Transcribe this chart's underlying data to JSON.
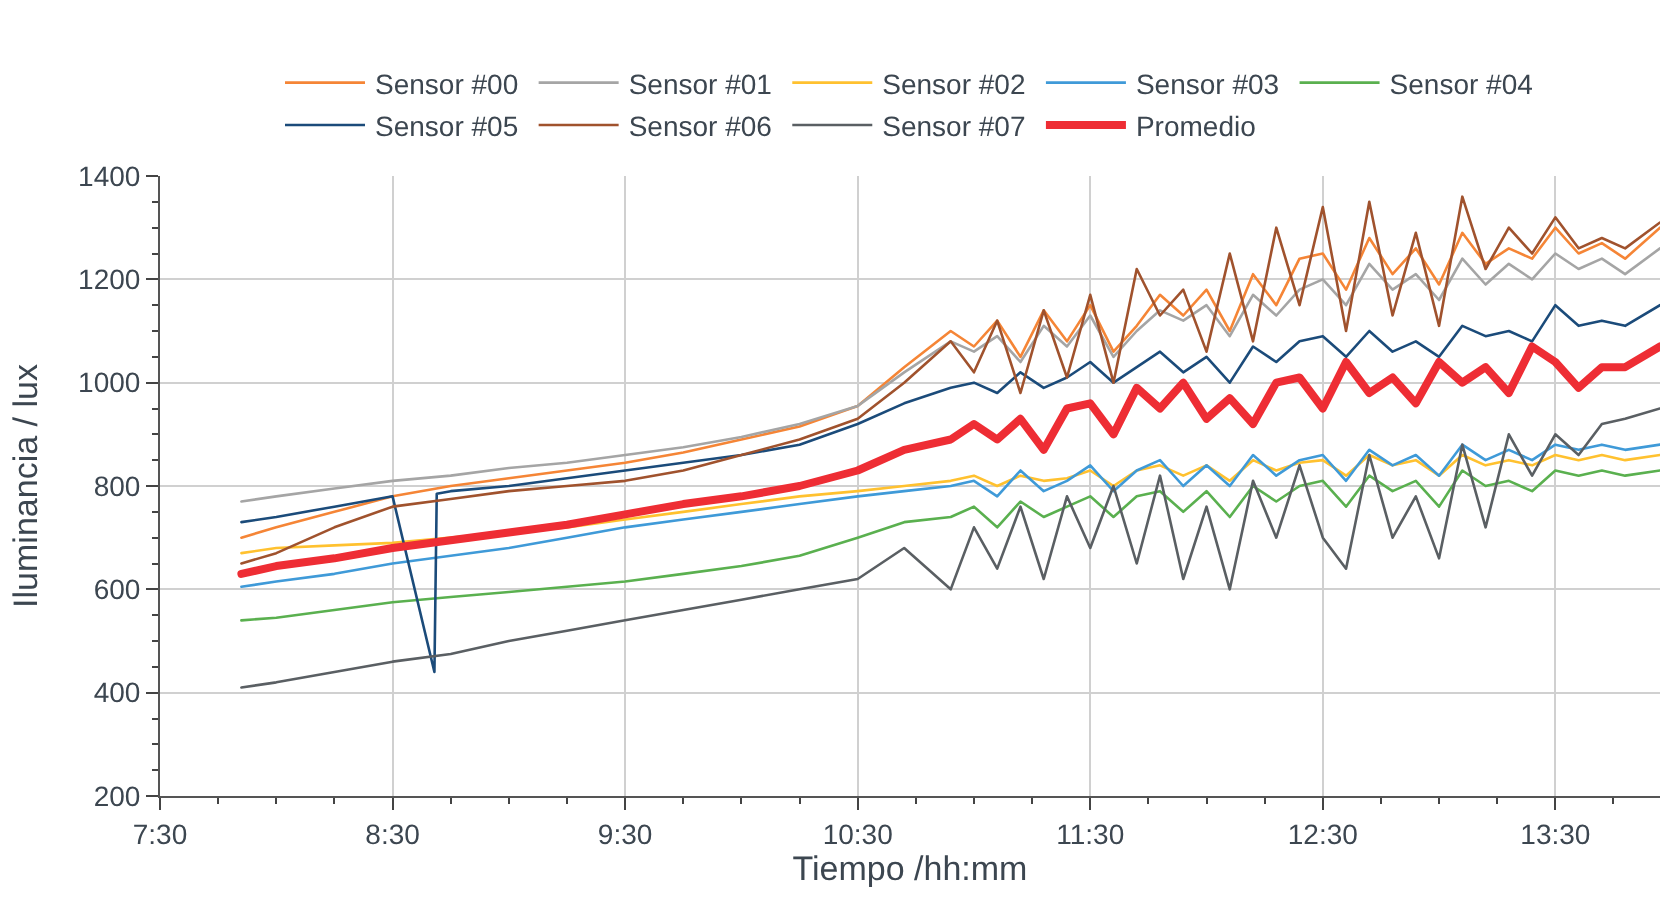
{
  "chart_data": {
    "type": "line",
    "xlabel": "Tiempo /hh:mm",
    "ylabel": "Iluminancia / lux",
    "legend": "top",
    "grid": true,
    "xlim": [
      7.5,
      13.95
    ],
    "xticks": [
      {
        "value": 7.5,
        "label": "7:30"
      },
      {
        "value": 8.5,
        "label": "8:30"
      },
      {
        "value": 9.5,
        "label": "9:30"
      },
      {
        "value": 10.5,
        "label": "10:30"
      },
      {
        "value": 11.5,
        "label": "11:30"
      },
      {
        "value": 12.5,
        "label": "12:30"
      },
      {
        "value": 13.5,
        "label": "13:30"
      }
    ],
    "ylim": [
      200,
      1400
    ],
    "yticks": [
      200,
      400,
      600,
      800,
      1000,
      1200,
      1400
    ],
    "x": [
      7.85,
      8.0,
      8.25,
      8.5,
      8.75,
      9.0,
      9.25,
      9.5,
      9.75,
      10.0,
      10.25,
      10.5,
      10.7,
      10.9,
      11.0,
      11.1,
      11.2,
      11.3,
      11.4,
      11.5,
      11.6,
      11.7,
      11.8,
      11.9,
      12.0,
      12.1,
      12.2,
      12.3,
      12.4,
      12.5,
      12.6,
      12.7,
      12.8,
      12.9,
      13.0,
      13.1,
      13.2,
      13.3,
      13.4,
      13.5,
      13.6,
      13.7,
      13.8,
      13.95
    ],
    "series": [
      {
        "name": "Sensor #00",
        "color": "#f58536",
        "values": [
          700,
          720,
          750,
          780,
          800,
          815,
          830,
          845,
          865,
          890,
          915,
          955,
          1030,
          1100,
          1070,
          1120,
          1050,
          1140,
          1080,
          1150,
          1060,
          1110,
          1170,
          1130,
          1180,
          1100,
          1210,
          1150,
          1240,
          1250,
          1180,
          1280,
          1210,
          1260,
          1190,
          1290,
          1230,
          1260,
          1240,
          1300,
          1250,
          1270,
          1240,
          1300
        ]
      },
      {
        "name": "Sensor #01",
        "color": "#a5a5a5",
        "values": [
          770,
          780,
          795,
          810,
          820,
          835,
          845,
          860,
          875,
          895,
          920,
          955,
          1020,
          1080,
          1060,
          1090,
          1040,
          1110,
          1070,
          1130,
          1050,
          1100,
          1140,
          1120,
          1150,
          1090,
          1170,
          1130,
          1180,
          1200,
          1150,
          1230,
          1180,
          1210,
          1160,
          1240,
          1190,
          1230,
          1200,
          1250,
          1220,
          1240,
          1210,
          1260
        ]
      },
      {
        "name": "Sensor #02",
        "color": "#ffc12f",
        "values": [
          670,
          680,
          685,
          690,
          700,
          710,
          720,
          735,
          750,
          765,
          780,
          790,
          800,
          810,
          820,
          800,
          820,
          810,
          815,
          830,
          800,
          830,
          840,
          820,
          840,
          810,
          850,
          830,
          845,
          850,
          820,
          860,
          840,
          850,
          820,
          860,
          840,
          850,
          840,
          860,
          850,
          860,
          850,
          860
        ]
      },
      {
        "name": "Sensor #03",
        "color": "#3f9ad8",
        "values": [
          605,
          615,
          630,
          650,
          665,
          680,
          700,
          720,
          735,
          750,
          765,
          780,
          790,
          800,
          810,
          780,
          830,
          790,
          810,
          840,
          790,
          830,
          850,
          800,
          840,
          800,
          860,
          820,
          850,
          860,
          810,
          870,
          840,
          860,
          820,
          880,
          850,
          870,
          850,
          880,
          870,
          880,
          870,
          880
        ]
      },
      {
        "name": "Sensor #04",
        "color": "#5ab04f",
        "values": [
          540,
          545,
          560,
          575,
          585,
          595,
          605,
          615,
          630,
          645,
          665,
          700,
          730,
          740,
          760,
          720,
          770,
          740,
          760,
          780,
          740,
          780,
          790,
          750,
          790,
          740,
          800,
          770,
          800,
          810,
          760,
          820,
          790,
          810,
          760,
          830,
          800,
          810,
          790,
          830,
          820,
          830,
          820,
          830
        ]
      },
      {
        "name": "Sensor #05",
        "color": "#1b4b7a",
        "x": [
          7.85,
          8.0,
          8.25,
          8.5,
          8.68,
          8.69,
          8.75,
          9.0,
          9.25,
          9.5,
          9.75,
          10.0,
          10.25,
          10.5,
          10.7,
          10.9,
          11.0,
          11.1,
          11.2,
          11.3,
          11.4,
          11.5,
          11.6,
          11.7,
          11.8,
          11.9,
          12.0,
          12.1,
          12.2,
          12.3,
          12.4,
          12.5,
          12.6,
          12.7,
          12.8,
          12.9,
          13.0,
          13.1,
          13.2,
          13.3,
          13.4,
          13.5,
          13.6,
          13.7,
          13.8,
          13.95
        ],
        "values": [
          730,
          740,
          760,
          780,
          440,
          785,
          790,
          800,
          815,
          830,
          845,
          860,
          880,
          920,
          960,
          990,
          1000,
          980,
          1020,
          990,
          1010,
          1040,
          1000,
          1030,
          1060,
          1020,
          1050,
          1000,
          1070,
          1040,
          1080,
          1090,
          1050,
          1100,
          1060,
          1080,
          1050,
          1110,
          1090,
          1100,
          1080,
          1150,
          1110,
          1120,
          1110,
          1150
        ]
      },
      {
        "name": "Sensor #06",
        "color": "#a0522d",
        "values": [
          650,
          670,
          720,
          760,
          775,
          790,
          800,
          810,
          830,
          860,
          890,
          930,
          1000,
          1080,
          1020,
          1120,
          980,
          1140,
          1010,
          1170,
          1000,
          1220,
          1130,
          1180,
          1060,
          1250,
          1080,
          1300,
          1150,
          1340,
          1100,
          1350,
          1130,
          1290,
          1110,
          1360,
          1220,
          1300,
          1250,
          1320,
          1260,
          1280,
          1260,
          1310
        ]
      },
      {
        "name": "Sensor #07",
        "color": "#5a5f63",
        "values": [
          410,
          420,
          440,
          460,
          475,
          500,
          520,
          540,
          560,
          580,
          600,
          620,
          680,
          600,
          720,
          640,
          760,
          620,
          780,
          680,
          800,
          650,
          820,
          620,
          760,
          600,
          810,
          700,
          840,
          700,
          640,
          860,
          700,
          780,
          660,
          880,
          720,
          900,
          820,
          900,
          860,
          920,
          930,
          950
        ]
      },
      {
        "name": "Promedio",
        "color": "#ee2d34",
        "values": [
          630,
          645,
          660,
          680,
          695,
          710,
          725,
          745,
          765,
          780,
          800,
          830,
          870,
          890,
          920,
          890,
          930,
          870,
          950,
          960,
          900,
          990,
          950,
          1000,
          930,
          970,
          920,
          1000,
          1010,
          950,
          1040,
          980,
          1010,
          960,
          1040,
          1000,
          1030,
          980,
          1070,
          1040,
          990,
          1030,
          1030,
          1070
        ]
      }
    ]
  }
}
